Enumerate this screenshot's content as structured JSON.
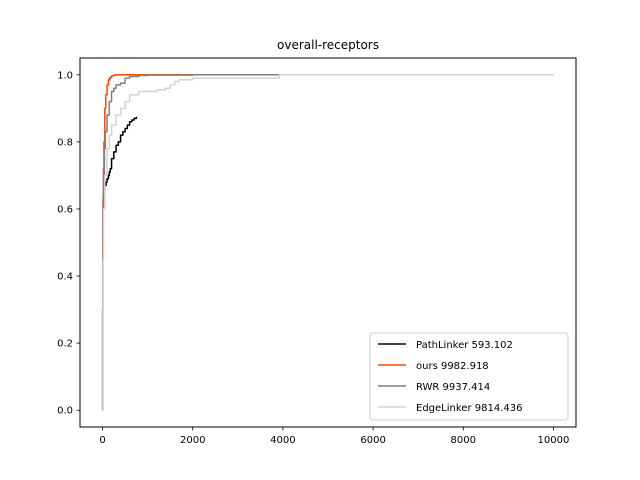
{
  "chart_data": {
    "type": "line",
    "title": "overall-receptors",
    "xlabel": "",
    "ylabel": "",
    "xlim": [
      -500,
      10500
    ],
    "ylim": [
      -0.05,
      1.05
    ],
    "xticks": [
      0,
      2000,
      4000,
      6000,
      8000,
      10000
    ],
    "xtick_labels": [
      "0",
      "2000",
      "4000",
      "6000",
      "8000",
      "10000"
    ],
    "yticks": [
      0.0,
      0.2,
      0.4,
      0.6,
      0.8,
      1.0
    ],
    "ytick_labels": [
      "0.0",
      "0.2",
      "0.4",
      "0.6",
      "0.8",
      "1.0"
    ],
    "grid": false,
    "legend_position": "lower-right",
    "series": [
      {
        "name": "PathLinker 593.102",
        "color": "#000000",
        "x": [
          0,
          2,
          5,
          10,
          20,
          30,
          50,
          80,
          100,
          130,
          150,
          170,
          200,
          250,
          300,
          350,
          400,
          450,
          500,
          550,
          600,
          650,
          700,
          750
        ],
        "y": [
          0.0,
          0.3,
          0.5,
          0.6,
          0.64,
          0.66,
          0.67,
          0.68,
          0.69,
          0.7,
          0.71,
          0.72,
          0.75,
          0.77,
          0.79,
          0.8,
          0.82,
          0.83,
          0.84,
          0.85,
          0.86,
          0.865,
          0.87,
          0.875
        ]
      },
      {
        "name": "ours 9982.918",
        "color": "#ff4500",
        "x": [
          0,
          5,
          10,
          20,
          30,
          50,
          70,
          100,
          130,
          160,
          200,
          250,
          300,
          400,
          500,
          1000,
          2000,
          4000,
          10000
        ],
        "y": [
          0.0,
          0.5,
          0.63,
          0.72,
          0.8,
          0.9,
          0.94,
          0.97,
          0.985,
          0.992,
          0.997,
          0.999,
          1.0,
          1.0,
          1.0,
          1.0,
          1.0,
          1.0,
          1.0
        ]
      },
      {
        "name": "RWR 9937.414",
        "color": "#808080",
        "x": [
          0,
          5,
          10,
          20,
          40,
          60,
          100,
          150,
          200,
          250,
          300,
          350,
          400,
          500,
          600,
          800,
          1000,
          2000,
          3000,
          4000,
          10000
        ],
        "y": [
          0.0,
          0.45,
          0.6,
          0.7,
          0.78,
          0.83,
          0.88,
          0.92,
          0.95,
          0.96,
          0.97,
          0.97,
          0.975,
          0.99,
          0.995,
          0.998,
          0.999,
          1.0,
          1.0,
          1.0,
          1.0
        ]
      },
      {
        "name": "EdgeLinker 9814.436",
        "color": "#d3d3d3",
        "x": [
          0,
          10,
          20,
          50,
          100,
          150,
          200,
          300,
          400,
          500,
          600,
          700,
          800,
          1000,
          1200,
          1400,
          1500,
          1600,
          1700,
          1800,
          2000,
          3000,
          3900,
          3920,
          10000
        ],
        "y": [
          0.0,
          0.45,
          0.6,
          0.7,
          0.78,
          0.82,
          0.85,
          0.88,
          0.9,
          0.92,
          0.94,
          0.94,
          0.95,
          0.95,
          0.955,
          0.96,
          0.97,
          0.98,
          0.985,
          0.985,
          0.99,
          0.99,
          0.99,
          1.0,
          1.0
        ]
      }
    ]
  }
}
